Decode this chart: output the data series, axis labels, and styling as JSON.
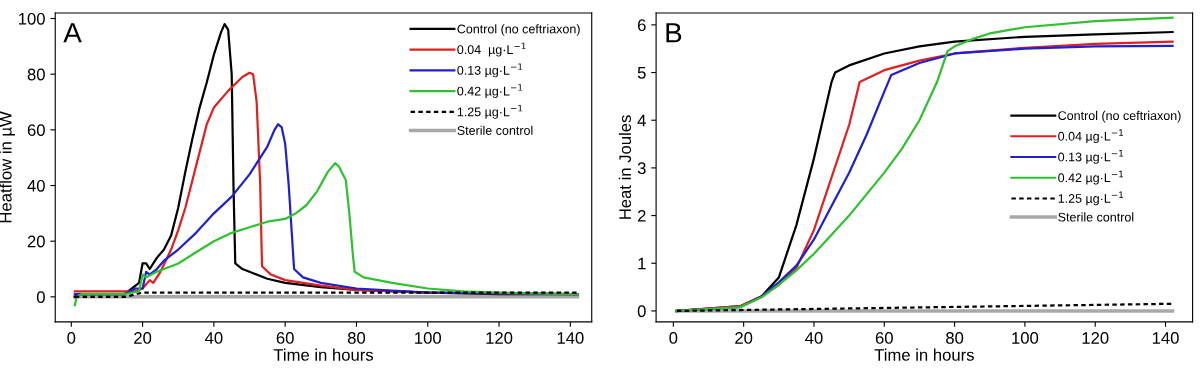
{
  "chart_data": [
    {
      "type": "line",
      "title": "A",
      "xlabel": "Time in hours",
      "ylabel": "Heatflow in µW",
      "legend": "top right",
      "xlim": [
        -4.5,
        146
      ],
      "xticks": [
        0,
        20,
        40,
        60,
        80,
        100,
        120,
        140
      ],
      "ylim": [
        -9,
        102
      ],
      "yticks": [
        0,
        20,
        40,
        60,
        80,
        100
      ],
      "series": [
        {
          "name": "Control (no ceftriaxon)",
          "color": "#000000",
          "x": [
            1,
            2,
            15,
            17,
            19,
            20,
            21,
            22,
            24,
            26,
            28,
            30,
            32,
            34,
            36,
            38,
            40,
            42,
            43,
            44,
            45,
            45.5,
            46,
            48,
            50,
            55,
            60,
            70,
            80,
            100,
            120,
            142
          ],
          "values": [
            0,
            1,
            1,
            3,
            5,
            12,
            12,
            10,
            14,
            17,
            22,
            32,
            45,
            57,
            68,
            77,
            87,
            95,
            98,
            96,
            80,
            40,
            12,
            10,
            9,
            6.5,
            5,
            3.5,
            2.5,
            1.5,
            1,
            1
          ]
        },
        {
          "name": "0.04  µg·L$^{−1}$",
          "color": "#e02020",
          "x": [
            1,
            15,
            18,
            20,
            22,
            23,
            25,
            28,
            30,
            32,
            34,
            36,
            38,
            40,
            44,
            48,
            50,
            51,
            52,
            53,
            53.5,
            56,
            60,
            70,
            80,
            100,
            142
          ],
          "values": [
            2,
            2,
            2,
            3,
            6,
            5,
            9,
            17,
            24,
            32,
            42,
            52,
            62,
            68,
            74,
            79,
            80.5,
            80,
            70,
            40,
            11,
            8,
            6,
            4,
            2.5,
            1.5,
            1
          ]
        },
        {
          "name": "0.13 µg·L$^{−1}$",
          "color": "#2020d0",
          "x": [
            1,
            15,
            18,
            20,
            21,
            22,
            24,
            26,
            30,
            35,
            40,
            45,
            50,
            55,
            57,
            58,
            59,
            60,
            61,
            62,
            62.5,
            65,
            70,
            80,
            100,
            142
          ],
          "values": [
            1,
            1,
            3,
            3,
            9,
            8,
            10,
            13,
            17,
            23,
            30,
            36,
            44,
            54,
            60,
            62,
            61,
            55,
            40,
            20,
            10,
            7,
            5,
            3,
            1.5,
            1
          ]
        },
        {
          "name": "0.42 µg·L$^{−1}$",
          "color": "#30c030",
          "x": [
            1,
            1.5,
            3,
            15,
            19,
            20,
            21,
            24,
            28,
            30,
            35,
            40,
            45,
            50,
            55,
            60,
            63,
            66,
            69,
            72,
            74,
            75,
            77,
            78,
            79,
            79.5,
            82,
            90,
            100,
            110,
            120,
            142
          ],
          "values": [
            -3,
            0,
            1,
            1,
            2,
            8,
            7,
            9,
            11,
            12,
            16,
            20,
            23,
            25,
            27,
            28,
            30,
            33,
            38,
            45,
            48,
            47,
            42,
            30,
            15,
            9,
            7,
            5,
            3,
            2,
            1.5,
            1
          ]
        },
        {
          "name": "1.25 µg·L$^{−1}$",
          "color": "#000000",
          "line_style": "dotted",
          "x": [
            1,
            15,
            20,
            140,
            142
          ],
          "values": [
            0,
            0,
            1.5,
            1.5,
            1.5
          ]
        },
        {
          "name": "Sterile control",
          "color": "#a8a8a8",
          "x": [
            1,
            142
          ],
          "values": [
            0,
            0
          ]
        }
      ]
    },
    {
      "type": "line",
      "title": "B",
      "xlabel": "Time in hours",
      "ylabel": "Heat in Joules",
      "legend": "right",
      "xlim": [
        -4.9,
        147.7
      ],
      "xticks": [
        0,
        20,
        40,
        60,
        80,
        100,
        120,
        140
      ],
      "ylim": [
        -0.23,
        6.25
      ],
      "yticks": [
        0,
        1,
        2,
        3,
        4,
        5,
        6
      ],
      "series": [
        {
          "name": "Control (no ceftriaxon)",
          "color": "#000000",
          "x": [
            1,
            10,
            19,
            25,
            30,
            35,
            40,
            45,
            46,
            50,
            60,
            70,
            80,
            100,
            120,
            142
          ],
          "values": [
            0,
            0.05,
            0.1,
            0.3,
            0.7,
            1.8,
            3.2,
            4.8,
            5.0,
            5.15,
            5.4,
            5.55,
            5.65,
            5.75,
            5.8,
            5.85
          ]
        },
        {
          "name": "0.04 µg·L$^{−1}$",
          "color": "#e02020",
          "x": [
            1,
            19,
            25,
            30,
            35,
            40,
            45,
            50,
            53,
            60,
            70,
            80,
            100,
            120,
            142
          ],
          "values": [
            0,
            0.1,
            0.3,
            0.55,
            0.9,
            1.7,
            2.8,
            3.9,
            4.8,
            5.05,
            5.25,
            5.4,
            5.52,
            5.6,
            5.65
          ]
        },
        {
          "name": "0.13 µg·L$^{−1}$",
          "color": "#2020d0",
          "x": [
            1,
            19,
            25,
            30,
            35,
            40,
            45,
            50,
            55,
            60,
            62,
            70,
            80,
            100,
            120,
            142
          ],
          "values": [
            0,
            0.08,
            0.3,
            0.6,
            0.95,
            1.5,
            2.2,
            2.9,
            3.7,
            4.6,
            4.95,
            5.2,
            5.4,
            5.5,
            5.55,
            5.56
          ]
        },
        {
          "name": "0.42 µg·L$^{−1}$",
          "color": "#30c030",
          "x": [
            1,
            19,
            25,
            30,
            35,
            40,
            45,
            50,
            55,
            60,
            65,
            70,
            75,
            78,
            80,
            85,
            90,
            100,
            120,
            142
          ],
          "values": [
            0,
            0.08,
            0.28,
            0.55,
            0.85,
            1.2,
            1.6,
            2.0,
            2.45,
            2.9,
            3.4,
            4.0,
            4.8,
            5.45,
            5.55,
            5.7,
            5.82,
            5.95,
            6.08,
            6.15
          ]
        },
        {
          "name": "1.25 µg·L$^{−1}$",
          "color": "#000000",
          "line_style": "dotted",
          "x": [
            1,
            142
          ],
          "values": [
            0,
            0.15
          ]
        },
        {
          "name": "Sterile control",
          "color": "#a8a8a8",
          "x": [
            1,
            142
          ],
          "values": [
            0,
            0
          ]
        }
      ]
    }
  ]
}
